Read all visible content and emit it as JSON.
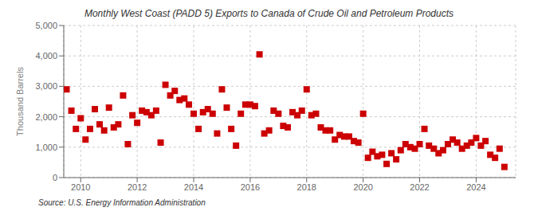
{
  "chart_data": {
    "type": "scatter",
    "title": "Monthly West Coast (PADD 5) Exports to Canada of Crude Oil and Petroleum Products",
    "ylabel": "Thousand Barrels",
    "annotations": [
      "Source: U.S. Energy Information Administration"
    ],
    "color": "#cc0000",
    "marker": "square",
    "grid": true,
    "xlim": [
      2009.4,
      2025.4
    ],
    "xticks": [
      2010,
      2012,
      2014,
      2016,
      2018,
      2020,
      2022,
      2024
    ],
    "ylim": [
      0,
      5000
    ],
    "yticks": [
      0,
      {
        "value": 1000,
        "label": "1,000"
      },
      {
        "value": 2000,
        "label": "2,000"
      },
      {
        "value": 3000,
        "label": "3,000"
      },
      {
        "value": 4000,
        "label": "4,000"
      },
      {
        "value": 5000,
        "label": "5,000"
      }
    ],
    "x": [
      2009.5,
      2009.67,
      2009.83,
      2010.0,
      2010.17,
      2010.33,
      2010.5,
      2010.67,
      2010.83,
      2011.0,
      2011.17,
      2011.33,
      2011.5,
      2011.67,
      2011.83,
      2012.0,
      2012.17,
      2012.33,
      2012.5,
      2012.67,
      2012.83,
      2013.0,
      2013.17,
      2013.33,
      2013.5,
      2013.67,
      2013.83,
      2014.0,
      2014.17,
      2014.33,
      2014.5,
      2014.67,
      2014.83,
      2015.0,
      2015.17,
      2015.33,
      2015.5,
      2015.67,
      2015.83,
      2016.0,
      2016.17,
      2016.33,
      2016.5,
      2016.67,
      2016.83,
      2017.0,
      2017.17,
      2017.33,
      2017.5,
      2017.67,
      2017.83,
      2018.0,
      2018.17,
      2018.33,
      2018.5,
      2018.67,
      2018.83,
      2019.0,
      2019.17,
      2019.33,
      2019.5,
      2019.67,
      2019.83,
      2020.0,
      2020.17,
      2020.33,
      2020.5,
      2020.67,
      2020.83,
      2021.0,
      2021.17,
      2021.33,
      2021.5,
      2021.67,
      2021.83,
      2022.0,
      2022.17,
      2022.33,
      2022.5,
      2022.67,
      2022.83,
      2023.0,
      2023.17,
      2023.33,
      2023.5,
      2023.67,
      2023.83,
      2024.0,
      2024.17,
      2024.33,
      2024.5,
      2024.67,
      2024.83,
      2025.0
    ],
    "values": [
      2900,
      2200,
      1600,
      1950,
      1250,
      1600,
      2250,
      1750,
      1550,
      2300,
      1650,
      1750,
      2700,
      1100,
      2050,
      1800,
      2200,
      2150,
      2050,
      2200,
      1150,
      3050,
      2700,
      2850,
      2550,
      2600,
      2400,
      2100,
      1600,
      2150,
      2250,
      2100,
      1450,
      2900,
      2300,
      1600,
      1050,
      2100,
      2400,
      2400,
      2350,
      4050,
      1450,
      1550,
      2200,
      2100,
      1700,
      1650,
      2150,
      2050,
      2200,
      2900,
      2050,
      2100,
      1650,
      1550,
      1550,
      1250,
      1400,
      1350,
      1350,
      1200,
      1150,
      2100,
      650,
      850,
      700,
      750,
      450,
      800,
      600,
      900,
      1100,
      1000,
      950,
      1100,
      1600,
      1050,
      950,
      800,
      900,
      1100,
      1250,
      1150,
      950,
      1050,
      1150,
      1300,
      1050,
      1200,
      750,
      650,
      950,
      350
    ]
  }
}
